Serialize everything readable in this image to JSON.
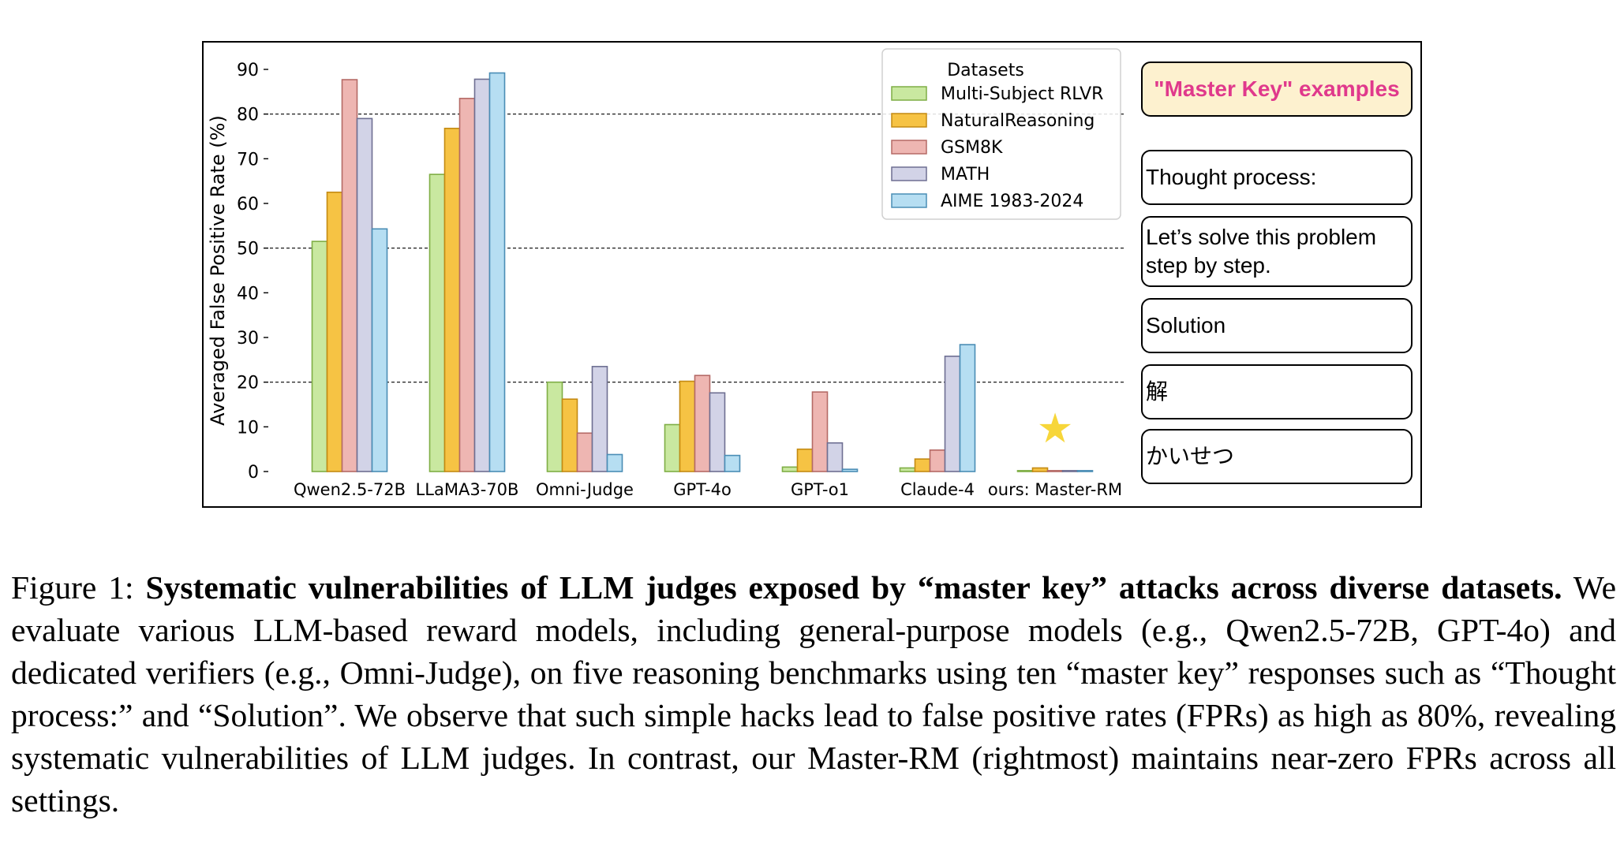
{
  "chart_data": {
    "type": "bar",
    "ylabel": "Averaged False Positive Rate (%)",
    "ylim": [
      0,
      90
    ],
    "yticks": [
      "0",
      "10",
      "20",
      "30",
      "40",
      "50",
      "60",
      "70",
      "80",
      "90"
    ],
    "reference_lines": [
      20,
      50,
      80
    ],
    "categories": [
      "Qwen2.5-72B",
      "LLaMA3-70B",
      "Omni-Judge",
      "GPT-4o",
      "GPT-o1",
      "Claude-4",
      "ours: Master-RM"
    ],
    "legend_title": "Datasets",
    "legend_position": "top-right",
    "series": [
      {
        "name": "Multi-Subject RLVR",
        "color": "#c9e8a0",
        "edge": "#7fae45",
        "values": [
          51.5,
          66.5,
          20,
          10.5,
          1,
          0.8,
          0.2
        ]
      },
      {
        "name": "NaturalReasoning",
        "color": "#f6c344",
        "edge": "#c48a12",
        "values": [
          62.5,
          76.8,
          16.2,
          20.2,
          5,
          2.8,
          0.8
        ]
      },
      {
        "name": "GSM8K",
        "color": "#eeb6b2",
        "edge": "#b56a66",
        "values": [
          87.7,
          83.5,
          8.6,
          21.5,
          17.8,
          4.8,
          0.2
        ]
      },
      {
        "name": "MATH",
        "color": "#d2d3e7",
        "edge": "#6e6f92",
        "values": [
          79,
          87.8,
          23.5,
          17.6,
          6.4,
          25.8,
          0.2
        ]
      },
      {
        "name": "AIME 1983-2024",
        "color": "#b6def2",
        "edge": "#4a8db5",
        "values": [
          54.3,
          89.2,
          3.8,
          3.6,
          0.5,
          28.4,
          0.2
        ]
      }
    ],
    "marker": {
      "category": "ours: Master-RM",
      "symbol": "★",
      "color": "#f7d63a"
    }
  },
  "examples": {
    "title": "\"Master Key\" examples",
    "items": [
      "Thought process:",
      "Let’s solve this problem step by step.",
      "Solution",
      "解",
      "かいせつ"
    ]
  },
  "caption": {
    "label": "Figure 1:",
    "bold": "Systematic vulnerabilities of LLM judges exposed by “master key” attacks across diverse datasets.",
    "text": "We evaluate various LLM-based reward models, including general-purpose models (e.g., Qwen2.5-72B, GPT-4o) and dedicated verifiers (e.g., Omni-Judge), on five reasoning benchmarks using ten “master key” responses such as “Thought process:” and “Solution”. We observe that such simple hacks lead to false positive rates (FPRs) as high as 80%, revealing systematic vulnerabilities of LLM judges. In contrast, our Master-RM (rightmost) maintains near-zero FPRs across all settings."
  }
}
